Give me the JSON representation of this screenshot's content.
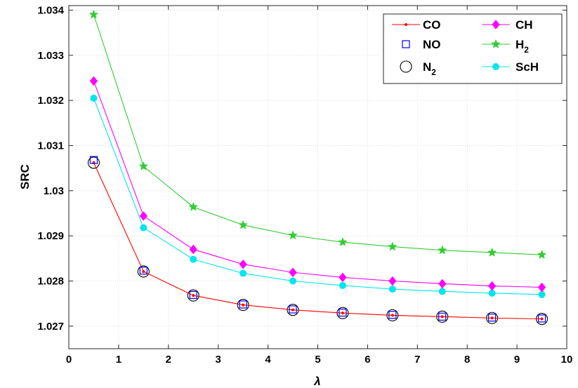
{
  "chart_data": {
    "type": "line",
    "title": "",
    "xlabel": "λ",
    "ylabel": "SRC",
    "xlim": [
      0,
      10
    ],
    "ylim": [
      1.0265,
      1.0341
    ],
    "xticks": [
      0,
      1,
      2,
      3,
      4,
      5,
      6,
      7,
      8,
      9,
      10
    ],
    "xtick_labels": [
      "0",
      "1",
      "2",
      "3",
      "4",
      "5",
      "6",
      "7",
      "8",
      "9",
      "10"
    ],
    "yticks": [
      1.027,
      1.028,
      1.029,
      1.03,
      1.031,
      1.032,
      1.033,
      1.034
    ],
    "ytick_labels": [
      "1.027",
      "1.028",
      "1.029",
      "1.03",
      "1.031",
      "1.032",
      "1.033",
      "1.034"
    ],
    "grid": true,
    "legend_position": "top-right",
    "x": [
      0.5,
      1.5,
      2.5,
      3.5,
      4.5,
      5.5,
      6.5,
      7.5,
      8.5,
      9.5
    ],
    "series": [
      {
        "name": "CO",
        "sub": "",
        "color": "#ff0000",
        "marker": "dot",
        "line": true,
        "values": [
          1.03062,
          1.02821,
          1.02768,
          1.02747,
          1.02736,
          1.02729,
          1.02724,
          1.02721,
          1.02718,
          1.02716
        ]
      },
      {
        "name": "NO",
        "sub": "",
        "color": "#0000ff",
        "marker": "square",
        "line": false,
        "values": [
          1.03068,
          1.02823,
          1.02769,
          1.02748,
          1.02737,
          1.0273,
          1.02725,
          1.02721,
          1.02719,
          1.02717
        ]
      },
      {
        "name": "N",
        "sub": "2",
        "color": "#000000",
        "marker": "circle",
        "line": false,
        "values": [
          1.03062,
          1.02821,
          1.02768,
          1.02747,
          1.02736,
          1.02729,
          1.02724,
          1.02721,
          1.02718,
          1.02716
        ]
      },
      {
        "name": "CH",
        "sub": "",
        "color": "#ff00ff",
        "marker": "diamond",
        "line": true,
        "values": [
          1.03243,
          1.02944,
          1.0287,
          1.02837,
          1.02819,
          1.02808,
          1.028,
          1.02794,
          1.02789,
          1.02786
        ]
      },
      {
        "name": "H",
        "sub": "2",
        "color": "#33cc33",
        "marker": "star",
        "line": true,
        "values": [
          1.0339,
          1.03054,
          1.02964,
          1.02924,
          1.02901,
          1.02886,
          1.02876,
          1.02868,
          1.02863,
          1.02858
        ]
      },
      {
        "name": "ScH",
        "sub": "",
        "color": "#00e5ee",
        "marker": "filledcircle",
        "line": true,
        "values": [
          1.03205,
          1.02918,
          1.02848,
          1.02817,
          1.028,
          1.0279,
          1.02782,
          1.02777,
          1.02773,
          1.0277
        ]
      }
    ]
  }
}
